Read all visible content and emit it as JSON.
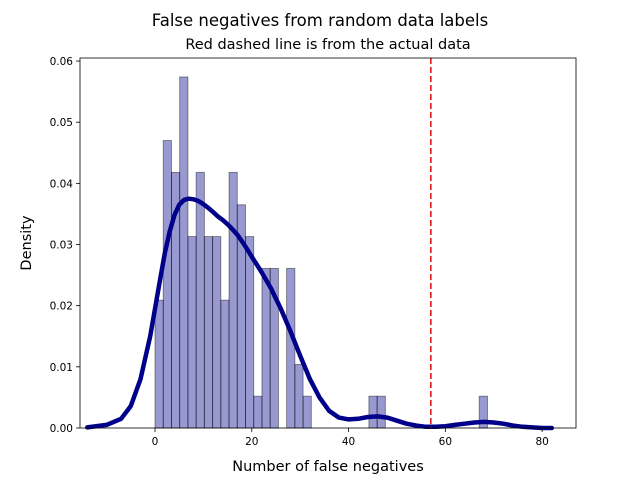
{
  "chart_data": {
    "type": "bar",
    "suptitle": "False negatives from random data labels",
    "title": "Red dashed line is from the actual data",
    "xlabel": "Number of false negatives",
    "ylabel": "Density",
    "xlim": [
      -15.5,
      87
    ],
    "ylim": [
      0,
      0.0605
    ],
    "x_ticks": [
      0,
      20,
      40,
      60,
      80
    ],
    "y_ticks": [
      0.0,
      0.01,
      0.02,
      0.03,
      0.04,
      0.05,
      0.06
    ],
    "x_tick_labels": [
      "0",
      "20",
      "40",
      "60",
      "80"
    ],
    "y_tick_labels": [
      "0.00",
      "0.01",
      "0.02",
      "0.03",
      "0.04",
      "0.05",
      "0.06"
    ],
    "histogram": {
      "bin_width": 1.7,
      "color": "#00008b",
      "alpha": 0.4,
      "bins": [
        {
          "left": 0.0,
          "density": 0.0209
        },
        {
          "left": 1.7,
          "density": 0.047
        },
        {
          "left": 3.4,
          "density": 0.0418
        },
        {
          "left": 5.1,
          "density": 0.0574
        },
        {
          "left": 6.8,
          "density": 0.0313
        },
        {
          "left": 8.5,
          "density": 0.0418
        },
        {
          "left": 10.2,
          "density": 0.0313
        },
        {
          "left": 11.9,
          "density": 0.0313
        },
        {
          "left": 13.6,
          "density": 0.0209
        },
        {
          "left": 15.3,
          "density": 0.0418
        },
        {
          "left": 17.0,
          "density": 0.0365
        },
        {
          "left": 18.7,
          "density": 0.0313
        },
        {
          "left": 20.4,
          "density": 0.0052
        },
        {
          "left": 22.1,
          "density": 0.0261
        },
        {
          "left": 23.8,
          "density": 0.0261
        },
        {
          "left": 27.2,
          "density": 0.0261
        },
        {
          "left": 28.9,
          "density": 0.0104
        },
        {
          "left": 30.6,
          "density": 0.0052
        },
        {
          "left": 44.2,
          "density": 0.0052
        },
        {
          "left": 45.9,
          "density": 0.0052
        },
        {
          "left": 67.0,
          "density": 0.0052
        }
      ]
    },
    "kde": {
      "color": "#00008b",
      "x": [
        -14,
        -10,
        -7,
        -5,
        -3,
        -1,
        0,
        1,
        2,
        3,
        4,
        5,
        6,
        7,
        8,
        9,
        10,
        11,
        12,
        13,
        14,
        15,
        16,
        17,
        18,
        19,
        20,
        22,
        24,
        26,
        28,
        30,
        32,
        34,
        36,
        38,
        40,
        42,
        44,
        46,
        48,
        50,
        52,
        54,
        56,
        58,
        60,
        62,
        64,
        66,
        68,
        70,
        72,
        74,
        76,
        78,
        80,
        82
      ],
      "y": [
        0.0001,
        0.0005,
        0.0015,
        0.0036,
        0.008,
        0.015,
        0.0195,
        0.024,
        0.0285,
        0.032,
        0.0348,
        0.0365,
        0.0373,
        0.0375,
        0.0374,
        0.0371,
        0.0366,
        0.036,
        0.0353,
        0.0346,
        0.034,
        0.0333,
        0.0325,
        0.0316,
        0.0305,
        0.0293,
        0.028,
        0.0255,
        0.0228,
        0.0195,
        0.0158,
        0.0118,
        0.008,
        0.005,
        0.0028,
        0.0017,
        0.0014,
        0.0015,
        0.0018,
        0.0019,
        0.0017,
        0.0012,
        0.0007,
        0.0004,
        0.0002,
        0.0002,
        0.0003,
        0.0005,
        0.0007,
        0.0009,
        0.001,
        0.0009,
        0.0007,
        0.0004,
        0.0002,
        0.0001,
        0.0,
        0.0
      ]
    },
    "reference_line": {
      "x": 57,
      "color": "#e41a1c",
      "style": "dashed"
    },
    "grid": false,
    "legend": "none"
  }
}
